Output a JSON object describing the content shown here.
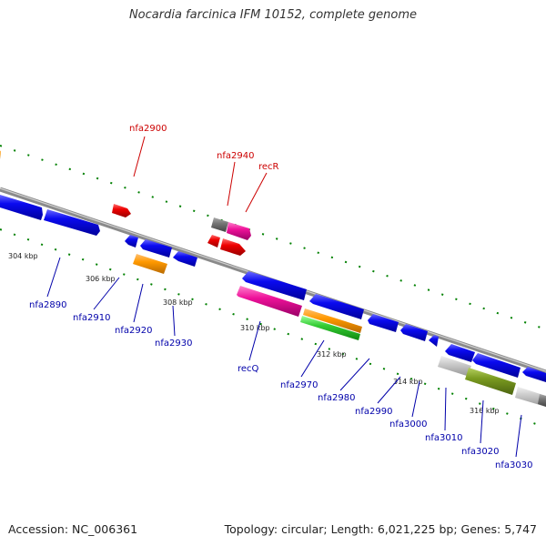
{
  "title": "Nocardia farcinica IFM 10152, complete genome",
  "footer": {
    "accession": "Accession: NC_006361",
    "summary": "Topology: circular; Length: 6,021,225 bp; Genes: 5,747"
  },
  "colors": {
    "forward_gene": "#0000ee",
    "highlight_gene": "#ee0000",
    "axis": "#888888",
    "tick": "#008000",
    "label_forward": "#cc0000",
    "label_reverse": "#0000aa"
  },
  "ticks": [
    "304 kbp",
    "306 kbp",
    "308 kbp",
    "310 kbp",
    "312 kbp",
    "314 kbp",
    "316 kbp"
  ],
  "labels_top": [
    "nfa2900",
    "nfa2940",
    "recR"
  ],
  "labels_bottom": [
    "nfa2890",
    "nfa2910",
    "nfa2920",
    "nfa2930",
    "recQ",
    "nfa2970",
    "nfa2980",
    "nfa2990",
    "nfa3000",
    "nfa3010",
    "nfa3020",
    "nfa3030"
  ]
}
